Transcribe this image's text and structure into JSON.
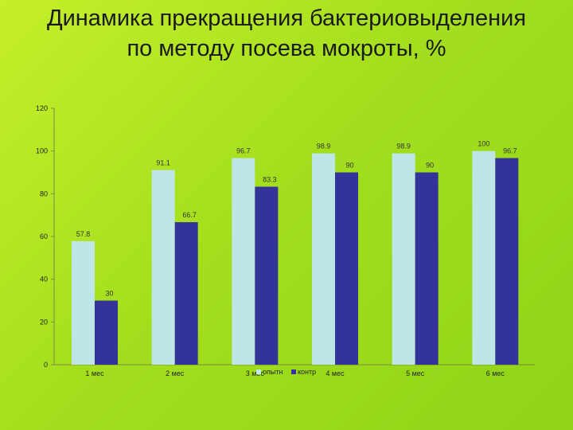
{
  "chart_data": {
    "type": "bar",
    "title": "Динамика прекращения бактериовыделения по методу посева мокроты, %",
    "categories": [
      "1 мес",
      "2 мес",
      "3 мес",
      "4 мес",
      "5 мес",
      "6 мес"
    ],
    "series": [
      {
        "name": "опытн",
        "color": "#bfe6e6",
        "values": [
          57.8,
          91.1,
          96.7,
          98.9,
          98.9,
          100
        ],
        "labels": [
          "57.8",
          "91.1",
          "96.7",
          "98.9",
          "98.9",
          "100"
        ]
      },
      {
        "name": "контр",
        "color": "#333399",
        "values": [
          30,
          66.7,
          83.3,
          90,
          90,
          96.7
        ],
        "labels": [
          "30",
          "66.7",
          "83.3",
          "90",
          "90",
          "96.7"
        ]
      }
    ],
    "ylim": [
      0,
      120
    ],
    "yticks": [
      0,
      20,
      40,
      60,
      80,
      100,
      120
    ],
    "grid": false,
    "legend": "bottom-center"
  }
}
